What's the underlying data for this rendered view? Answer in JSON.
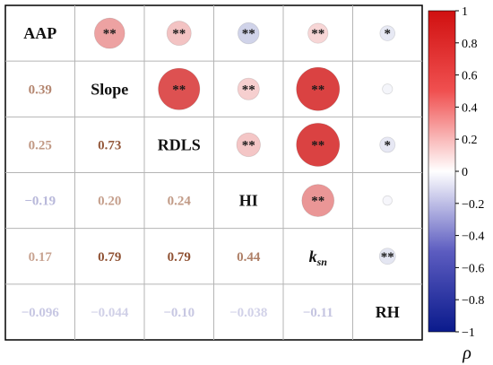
{
  "chart_data": {
    "type": "heatmap",
    "subtype": "correlation-matrix",
    "variables": [
      "AAP",
      "Slope",
      "RDLS",
      "HI",
      "k_sn",
      "RH"
    ],
    "variable_labels": [
      {
        "base": "AAP",
        "sub": ""
      },
      {
        "base": "Slope",
        "sub": ""
      },
      {
        "base": "RDLS",
        "sub": ""
      },
      {
        "base": "HI",
        "sub": ""
      },
      {
        "base": "k",
        "sub": "sn"
      },
      {
        "base": "RH",
        "sub": ""
      }
    ],
    "lower_triangle_labels": {
      "1,0": "0.39",
      "2,0": "0.25",
      "2,1": "0.73",
      "3,0": "−0.19",
      "3,1": "0.20",
      "3,2": "0.24",
      "4,0": "0.17",
      "4,1": "0.79",
      "4,2": "0.79",
      "4,3": "0.44",
      "5,0": "−0.096",
      "5,1": "−0.044",
      "5,2": "−0.10",
      "5,3": "−0.038",
      "5,4": "−0.11"
    },
    "matrix": [
      [
        1,
        0.39,
        0.25,
        -0.19,
        0.17,
        -0.096
      ],
      [
        0.39,
        1,
        0.73,
        0.2,
        0.79,
        -0.044
      ],
      [
        0.25,
        0.73,
        1,
        0.24,
        0.79,
        -0.1
      ],
      [
        -0.19,
        0.2,
        0.24,
        1,
        0.44,
        -0.038
      ],
      [
        0.17,
        0.79,
        0.79,
        0.44,
        1,
        -0.11
      ],
      [
        -0.096,
        -0.044,
        -0.1,
        -0.038,
        -0.11,
        1
      ]
    ],
    "significance": {
      "0,1": "**",
      "0,2": "**",
      "0,3": "**",
      "0,4": "**",
      "0,5": "*",
      "1,2": "**",
      "1,3": "**",
      "1,4": "**",
      "1,5": "",
      "2,3": "**",
      "2,4": "**",
      "2,5": "*",
      "3,4": "**",
      "3,5": "",
      "4,5": "**"
    },
    "colorbar": {
      "title": "ρ",
      "range": [
        -1,
        1
      ],
      "ticks": [
        1,
        0.8,
        0.6,
        0.4,
        0.2,
        0,
        -0.2,
        -0.4,
        -0.6,
        -0.8,
        -1
      ],
      "tick_labels": [
        "1",
        "0.8",
        "0.6",
        "0.4",
        "0.2",
        "0",
        "−0.2",
        "−0.4",
        "−0.6",
        "−0.8",
        "−1"
      ],
      "colors": {
        "negative": "#0a1a8c",
        "zero": "#ffffff",
        "positive": "#d01010"
      }
    },
    "upper_glyph": "circle (area scaled by |ρ|)",
    "lower_glyph": "coefficient text",
    "grid": true
  }
}
